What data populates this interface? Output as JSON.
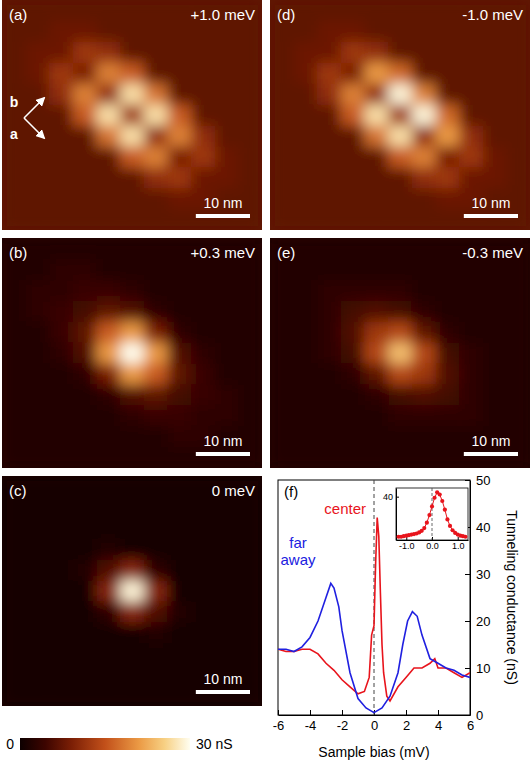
{
  "chart_data": [
    {
      "type": "heatmap",
      "title": "(a)",
      "subtitle": "+1.0 meV",
      "xlim": [
        0,
        48
      ],
      "ylim": [
        0,
        42.5
      ],
      "tick_labels": false,
      "scale_bar": {
        "value": 10,
        "label": "10 nm"
      },
      "lattice_axes": [
        "b",
        "a"
      ],
      "z": [
        [
          7,
          7,
          7,
          7,
          7,
          7,
          7,
          7,
          7,
          7,
          7
        ],
        [
          7,
          7,
          8,
          8,
          7,
          7,
          7,
          7,
          7,
          7,
          7
        ],
        [
          7,
          8,
          8,
          12,
          11,
          7,
          7,
          7,
          7,
          7,
          7
        ],
        [
          7,
          8,
          12,
          9,
          19,
          16,
          7,
          7,
          7,
          7,
          7
        ],
        [
          7,
          7,
          11,
          19,
          11,
          27,
          18,
          7,
          7,
          7,
          7
        ],
        [
          7,
          7,
          7,
          16,
          27,
          12,
          27,
          16,
          7,
          7,
          7
        ],
        [
          7,
          7,
          7,
          7,
          18,
          27,
          11,
          19,
          11,
          7,
          7
        ],
        [
          7,
          7,
          7,
          7,
          7,
          16,
          19,
          9,
          12,
          8,
          7
        ],
        [
          7,
          7,
          7,
          7,
          7,
          7,
          11,
          12,
          8,
          8,
          7
        ],
        [
          7,
          7,
          7,
          7,
          7,
          7,
          7,
          8,
          8,
          7,
          7
        ],
        [
          7,
          7,
          7,
          7,
          7,
          7,
          7,
          7,
          7,
          7,
          7
        ]
      ]
    },
    {
      "type": "heatmap",
      "title": "(b)",
      "subtitle": "+0.3 meV",
      "xlim": [
        0,
        48
      ],
      "ylim": [
        0,
        42.5
      ],
      "tick_labels": false,
      "scale_bar": {
        "value": 10,
        "label": "10 nm"
      },
      "z": [
        [
          2,
          2,
          2,
          2,
          2,
          2,
          2,
          2,
          2,
          2,
          2
        ],
        [
          2,
          2,
          3,
          3,
          2,
          2,
          2,
          2,
          2,
          2,
          2
        ],
        [
          2,
          3,
          3,
          4,
          4,
          3,
          2,
          2,
          2,
          2,
          2
        ],
        [
          2,
          3,
          4,
          5,
          7,
          6,
          3,
          2,
          2,
          2,
          2
        ],
        [
          2,
          2,
          4,
          7,
          16,
          21,
          9,
          3,
          2,
          2,
          2
        ],
        [
          2,
          2,
          3,
          6,
          21,
          39,
          21,
          6,
          3,
          2,
          2
        ],
        [
          2,
          2,
          2,
          3,
          9,
          21,
          16,
          7,
          4,
          2,
          2
        ],
        [
          2,
          2,
          2,
          2,
          3,
          6,
          7,
          5,
          4,
          3,
          2
        ],
        [
          2,
          2,
          2,
          2,
          2,
          3,
          4,
          4,
          3,
          3,
          2
        ],
        [
          2,
          2,
          2,
          2,
          2,
          2,
          2,
          3,
          3,
          2,
          2
        ],
        [
          2,
          2,
          2,
          2,
          2,
          2,
          2,
          2,
          2,
          2,
          2
        ]
      ]
    },
    {
      "type": "heatmap",
      "title": "(c)",
      "subtitle": "0 meV",
      "xlim": [
        0,
        48
      ],
      "ylim": [
        0,
        42.5
      ],
      "tick_labels": false,
      "scale_bar": {
        "value": 10,
        "label": "10 nm"
      },
      "z": [
        [
          1,
          1,
          1,
          1,
          1,
          1,
          1,
          1,
          1,
          1,
          1
        ],
        [
          1,
          1,
          1,
          1,
          1,
          1,
          1,
          1,
          1,
          1,
          1
        ],
        [
          1,
          1,
          1,
          1,
          1,
          1,
          1,
          1,
          1,
          1,
          1
        ],
        [
          1,
          1,
          1,
          1,
          2,
          1,
          1,
          1,
          1,
          1,
          1
        ],
        [
          1,
          1,
          1,
          2,
          6,
          10,
          3,
          1,
          1,
          1,
          1
        ],
        [
          1,
          1,
          1,
          1,
          10,
          29,
          10,
          1,
          1,
          1,
          1
        ],
        [
          1,
          1,
          1,
          1,
          3,
          10,
          6,
          2,
          1,
          1,
          1
        ],
        [
          1,
          1,
          1,
          1,
          1,
          1,
          2,
          1,
          1,
          1,
          1
        ],
        [
          1,
          1,
          1,
          1,
          1,
          1,
          1,
          1,
          1,
          1,
          1
        ],
        [
          1,
          1,
          1,
          1,
          1,
          1,
          1,
          1,
          1,
          1,
          1
        ],
        [
          1,
          1,
          1,
          1,
          1,
          1,
          1,
          1,
          1,
          1,
          1
        ]
      ]
    },
    {
      "type": "heatmap",
      "title": "(d)",
      "subtitle": "-1.0 meV",
      "xlim": [
        0,
        48
      ],
      "ylim": [
        0,
        42.5
      ],
      "tick_labels": false,
      "scale_bar": {
        "value": 10,
        "label": "10 nm"
      },
      "z": [
        [
          7,
          7,
          7,
          7,
          7,
          7,
          7,
          7,
          7,
          7,
          7
        ],
        [
          7,
          7,
          8,
          8,
          7,
          7,
          7,
          7,
          7,
          7,
          7
        ],
        [
          7,
          8,
          8,
          12,
          11,
          7,
          7,
          7,
          7,
          7,
          7
        ],
        [
          7,
          8,
          12,
          9,
          21,
          17,
          7,
          7,
          7,
          7,
          7
        ],
        [
          7,
          7,
          11,
          19,
          11,
          29,
          19,
          7,
          7,
          7,
          7
        ],
        [
          7,
          7,
          7,
          16,
          27,
          12,
          29,
          17,
          7,
          7,
          7
        ],
        [
          7,
          7,
          7,
          7,
          18,
          27,
          11,
          21,
          11,
          7,
          7
        ],
        [
          7,
          7,
          7,
          7,
          7,
          16,
          19,
          9,
          12,
          8,
          7
        ],
        [
          7,
          7,
          7,
          7,
          7,
          7,
          11,
          12,
          8,
          8,
          7
        ],
        [
          7,
          7,
          7,
          7,
          7,
          7,
          7,
          8,
          8,
          7,
          7
        ],
        [
          7,
          7,
          7,
          7,
          7,
          7,
          7,
          7,
          7,
          7,
          7
        ]
      ]
    },
    {
      "type": "heatmap",
      "title": "(e)",
      "subtitle": "-0.3 meV",
      "xlim": [
        0,
        48
      ],
      "ylim": [
        0,
        42.5
      ],
      "tick_labels": false,
      "scale_bar": {
        "value": 10,
        "label": "10 nm"
      },
      "z": [
        [
          2,
          2,
          2,
          2,
          2,
          2,
          2,
          2,
          2,
          2,
          2
        ],
        [
          2,
          2,
          2,
          2,
          2,
          2,
          2,
          2,
          2,
          2,
          2
        ],
        [
          2,
          2,
          3,
          3,
          3,
          3,
          2,
          2,
          2,
          2,
          2
        ],
        [
          2,
          2,
          3,
          5,
          6,
          5,
          3,
          2,
          2,
          2,
          2
        ],
        [
          2,
          2,
          3,
          6,
          12,
          14,
          7,
          3,
          2,
          2,
          2
        ],
        [
          2,
          2,
          3,
          5,
          14,
          24,
          14,
          5,
          3,
          2,
          2
        ],
        [
          2,
          2,
          2,
          3,
          7,
          14,
          12,
          6,
          3,
          2,
          2
        ],
        [
          2,
          2,
          2,
          2,
          3,
          5,
          6,
          5,
          3,
          2,
          2
        ],
        [
          2,
          2,
          2,
          2,
          2,
          3,
          3,
          3,
          3,
          2,
          2
        ],
        [
          2,
          2,
          2,
          2,
          2,
          2,
          2,
          2,
          2,
          2,
          2
        ],
        [
          2,
          2,
          2,
          2,
          2,
          2,
          2,
          2,
          2,
          2,
          2
        ]
      ]
    },
    {
      "type": "line",
      "title": "(f)",
      "xlabel": "Sample bias (mV)",
      "ylabel": "Tunneling conductance (nS)",
      "xlim": [
        -6,
        6
      ],
      "ylim": [
        0,
        50
      ],
      "xticks": [
        -6,
        -4,
        -2,
        0,
        2,
        4,
        6
      ],
      "yticks": [
        0,
        10,
        20,
        30,
        40,
        50
      ],
      "vline": 0,
      "line_style": "dashed",
      "series": [
        {
          "name": "center",
          "color": "#e8141c",
          "x": [
            -6,
            -5.5,
            -5,
            -4.5,
            -4,
            -3.5,
            -3,
            -2.5,
            -2,
            -1.5,
            -1,
            -0.6,
            -0.3,
            -0.15,
            0,
            0.1,
            0.2,
            0.3,
            0.4,
            0.5,
            0.6,
            0.8,
            1,
            1.5,
            2,
            2.5,
            3,
            3.5,
            3.8,
            4,
            4.5,
            5,
            5.5,
            6
          ],
          "values": [
            14,
            13.5,
            13.5,
            14,
            14,
            13,
            11,
            9.5,
            7.5,
            6,
            4.5,
            5,
            8,
            17,
            19,
            32,
            42,
            38,
            26,
            15,
            9,
            4,
            3,
            6,
            8,
            10,
            10,
            11,
            12,
            10,
            10,
            9,
            8,
            9
          ]
        },
        {
          "name": "far away",
          "color": "#2020e0",
          "x": [
            -6,
            -5.5,
            -5,
            -4.5,
            -4,
            -3.5,
            -3,
            -2.7,
            -2.5,
            -2.2,
            -2,
            -1.5,
            -1,
            -0.5,
            0,
            0.5,
            1,
            1.5,
            1.8,
            2.1,
            2.4,
            2.7,
            3,
            3.5,
            4,
            4.5,
            5,
            5.5,
            6
          ],
          "values": [
            14,
            14,
            13.5,
            14.5,
            16.5,
            20,
            25,
            28,
            27,
            23,
            18,
            9,
            3.5,
            1.5,
            0.5,
            1.5,
            4,
            9,
            15,
            20,
            22,
            21,
            17,
            12,
            11,
            10,
            9.5,
            8.5,
            8
          ]
        }
      ],
      "inset": {
        "type": "line",
        "xlim": [
          -1.4,
          1.4
        ],
        "ylim": [
          0,
          48
        ],
        "xticks": [
          {
            "value": -1,
            "label": "-1.0"
          },
          {
            "value": 0,
            "label": "0.0"
          },
          {
            "value": 1,
            "label": "1.0"
          }
        ],
        "yticks": [
          40
        ],
        "vline": 0,
        "line_style": "dashed",
        "series": [
          {
            "color": "#e8141c",
            "marker": "circle",
            "x": [
              -1.3,
              -1.2,
              -1.1,
              -1,
              -0.9,
              -0.8,
              -0.7,
              -0.6,
              -0.5,
              -0.4,
              -0.3,
              -0.2,
              -0.1,
              0,
              0.1,
              0.2,
              0.3,
              0.4,
              0.5,
              0.6,
              0.7,
              0.8,
              0.9,
              1,
              1.1,
              1.2,
              1.3
            ],
            "values": [
              3,
              3,
              3.5,
              4,
              4.5,
              5,
              5.5,
              6,
              7,
              8.5,
              11,
              16,
              23,
              31,
              39,
              44,
              42,
              36,
              28,
              19,
              13,
              9,
              6.5,
              5,
              4,
              3.5,
              3
            ]
          }
        ]
      }
    },
    {
      "type": "colorbar",
      "zlim": [
        0,
        30
      ],
      "ticks": [
        0,
        {
          "value": 30,
          "label": "30 nS"
        }
      ]
    }
  ]
}
